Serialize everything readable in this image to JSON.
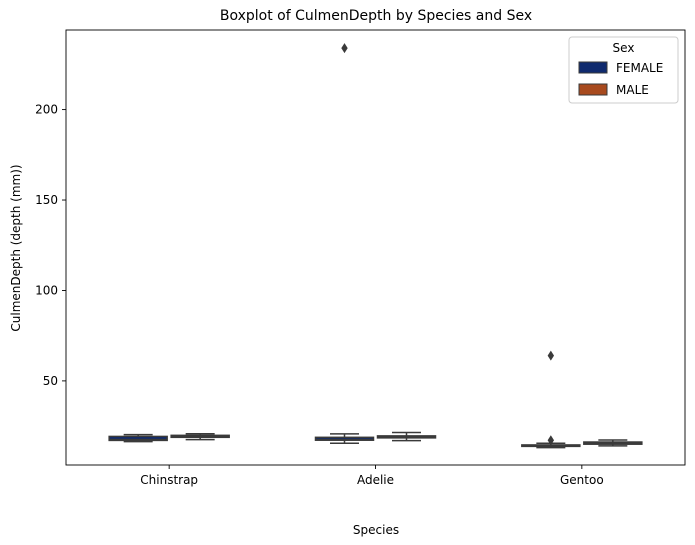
{
  "chart_data": {
    "type": "box",
    "title": "Boxplot of CulmenDepth by Species and Sex",
    "xlabel": "Species",
    "ylabel": "CulmenDepth (depth (mm))",
    "categories": [
      "Chinstrap",
      "Adelie",
      "Gentoo"
    ],
    "ylim": [
      3.5,
      244
    ],
    "yticks": [
      50,
      100,
      150,
      200
    ],
    "legend": {
      "title": "Sex",
      "position": "top-right"
    },
    "series": [
      {
        "name": "FEMALE",
        "color": "#0f2a6e",
        "boxes": [
          {
            "category": "Chinstrap",
            "min": 16.4,
            "q1": 17.1,
            "median": 17.6,
            "q3": 19.3,
            "max": 20.3,
            "outliers": []
          },
          {
            "category": "Adelie",
            "min": 15.5,
            "q1": 17.2,
            "median": 17.6,
            "q3": 18.8,
            "max": 20.7,
            "outliers": [
              234
            ]
          },
          {
            "category": "Gentoo",
            "min": 13.1,
            "q1": 13.8,
            "median": 14.2,
            "q3": 14.6,
            "max": 15.5,
            "outliers": [
              17.2,
              64
            ]
          }
        ]
      },
      {
        "name": "MALE",
        "color": "#a84a1e",
        "boxes": [
          {
            "category": "Chinstrap",
            "min": 17.5,
            "q1": 18.8,
            "median": 19.4,
            "q3": 19.9,
            "max": 20.8,
            "outliers": []
          },
          {
            "category": "Adelie",
            "min": 17.0,
            "q1": 18.5,
            "median": 19.0,
            "q3": 19.6,
            "max": 21.5,
            "outliers": []
          },
          {
            "category": "Gentoo",
            "min": 14.1,
            "q1": 15.0,
            "median": 15.7,
            "q3": 16.2,
            "max": 17.3,
            "outliers": []
          }
        ]
      }
    ]
  }
}
